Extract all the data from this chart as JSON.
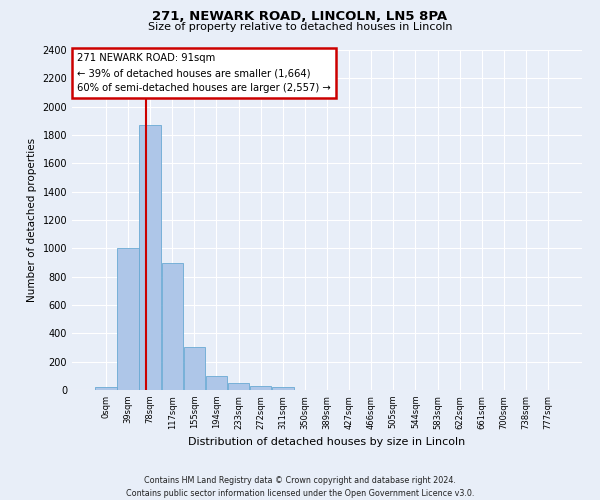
{
  "title1": "271, NEWARK ROAD, LINCOLN, LN5 8PA",
  "title2": "Size of property relative to detached houses in Lincoln",
  "xlabel": "Distribution of detached houses by size in Lincoln",
  "ylabel": "Number of detached properties",
  "bar_color": "#aec6e8",
  "bar_edge_color": "#6aaad4",
  "background_color": "#e8eef8",
  "grid_color": "#ffffff",
  "categories": [
    "0sqm",
    "39sqm",
    "78sqm",
    "117sqm",
    "155sqm",
    "194sqm",
    "233sqm",
    "272sqm",
    "311sqm",
    "350sqm",
    "389sqm",
    "427sqm",
    "466sqm",
    "505sqm",
    "544sqm",
    "583sqm",
    "622sqm",
    "661sqm",
    "700sqm",
    "738sqm",
    "777sqm"
  ],
  "values": [
    20,
    1000,
    1870,
    900,
    305,
    100,
    50,
    30,
    20,
    0,
    0,
    0,
    0,
    0,
    0,
    0,
    0,
    0,
    0,
    0,
    0
  ],
  "ylim": [
    0,
    2400
  ],
  "yticks": [
    0,
    200,
    400,
    600,
    800,
    1000,
    1200,
    1400,
    1600,
    1800,
    2000,
    2200,
    2400
  ],
  "annotation_title": "271 NEWARK ROAD: 91sqm",
  "annotation_line1": "← 39% of detached houses are smaller (1,664)",
  "annotation_line2": "60% of semi-detached houses are larger (2,557) →",
  "annotation_box_color": "#ffffff",
  "annotation_box_edge": "#cc0000",
  "vline_color": "#cc0000",
  "vline_x": 1.833,
  "footer1": "Contains HM Land Registry data © Crown copyright and database right 2024.",
  "footer2": "Contains public sector information licensed under the Open Government Licence v3.0."
}
